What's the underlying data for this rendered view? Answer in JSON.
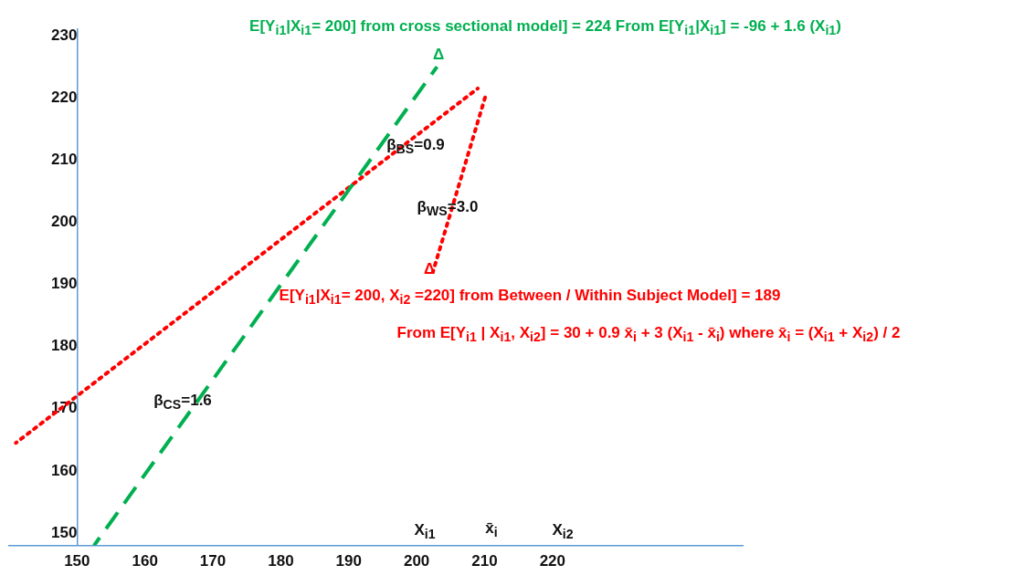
{
  "chart_data": {
    "type": "line",
    "xlim": [
      140,
      248
    ],
    "ylim": [
      148,
      231
    ],
    "xticks": [
      150,
      160,
      170,
      180,
      190,
      200,
      210,
      220
    ],
    "yticks": [
      150,
      160,
      170,
      180,
      190,
      200,
      210,
      220,
      230
    ],
    "grid": false,
    "legend": false,
    "marker": "none",
    "series": [
      {
        "color": "#00b050",
        "line_style": "dashed",
        "x": [
          152.5,
          203
        ],
        "values": [
          148,
          225
        ]
      },
      {
        "color": "#ff0000",
        "line_style": "dotted",
        "x": [
          141,
          209
        ],
        "values": [
          164.5,
          221.5
        ]
      },
      {
        "color": "#ff0000",
        "line_style": "dotted",
        "x": [
          210.2,
          202.4
        ],
        "values": [
          220.5,
          192
        ]
      }
    ],
    "annotations": [
      "E[Y$_{i1}$|X$_{i1}$= 200] from cross sectional model]  = 224  From E[Y$_{i1}$|X$_{i1}$] = -96 + 1.6 (X$_{i1}$)",
      "Δ",
      "β$_{BS}$=0.9",
      "β$_{WS}$=3.0",
      "Δ",
      "E[Y$_{i1}$|X$_{i1}$= 200, X$_{i2}$ =220] from Between / Within Subject Model] = 189",
      "From E[Y$_{i1}$ | X$_{i1}$, X$_{i2}$] = 30 + 0.9 x̄$_{i}$ + 3 (X$_{i1}$ - x̄$_{i}$)  where  x̄$_{i}$ = (X$_{i1}$ + X$_{i2}$) / 2",
      "β$_{CS}$=1.6",
      "X$_{i1}$",
      "x̄$_{i}$",
      "X$_{i2}$"
    ]
  }
}
